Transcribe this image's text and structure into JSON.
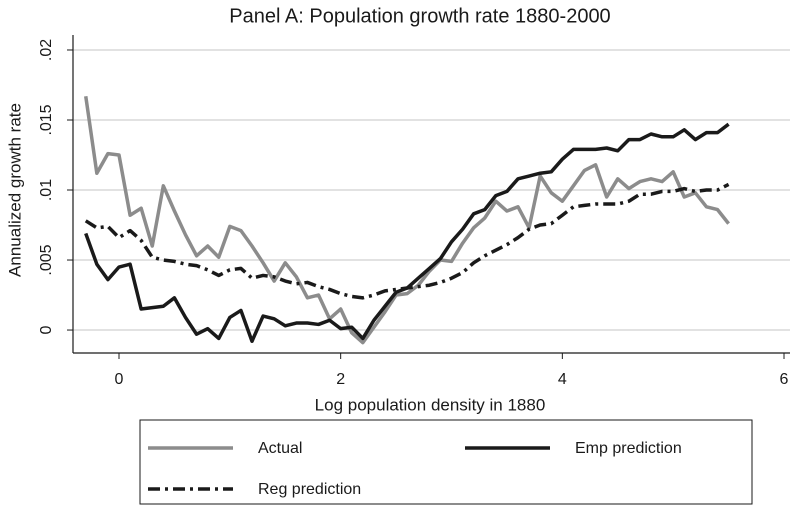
{
  "chart_data": {
    "type": "line",
    "title": "Panel A: Population growth rate 1880-2000",
    "xlabel": "Log population density in 1880",
    "ylabel": "Annualized growth rate",
    "x": [
      -0.3,
      -0.2,
      -0.1,
      0,
      0.1,
      0.2,
      0.3,
      0.4,
      0.5,
      0.6,
      0.7,
      0.8,
      0.9,
      1.0,
      1.1,
      1.2,
      1.3,
      1.4,
      1.5,
      1.6,
      1.7,
      1.8,
      1.9,
      2.0,
      2.1,
      2.2,
      2.3,
      2.4,
      2.5,
      2.6,
      2.7,
      2.8,
      2.9,
      3.0,
      3.1,
      3.2,
      3.3,
      3.4,
      3.5,
      3.6,
      3.7,
      3.8,
      3.9,
      4.0,
      4.1,
      4.2,
      4.3,
      4.4,
      4.5,
      4.6,
      4.7,
      4.8,
      4.9,
      5.0,
      5.1,
      5.2,
      5.3,
      5.4,
      5.5
    ],
    "series": [
      {
        "name": "Actual",
        "color": "#8c8c8c",
        "dash": "solid",
        "values": [
          0.0167,
          0.0112,
          0.0126,
          0.0125,
          0.0082,
          0.0087,
          0.006,
          0.0103,
          0.0085,
          0.0068,
          0.0053,
          0.006,
          0.0052,
          0.0074,
          0.0071,
          0.006,
          0.0048,
          0.0035,
          0.0048,
          0.0038,
          0.0023,
          0.0025,
          0.0008,
          0.0015,
          -0.0002,
          -0.0009,
          0.0002,
          0.0013,
          0.0025,
          0.0026,
          0.0032,
          0.0042,
          0.005,
          0.0049,
          0.0062,
          0.0073,
          0.008,
          0.0092,
          0.0085,
          0.0088,
          0.0073,
          0.011,
          0.0098,
          0.0092,
          0.0103,
          0.0114,
          0.0118,
          0.0095,
          0.0108,
          0.0101,
          0.0106,
          0.0108,
          0.0106,
          0.0113,
          0.0095,
          0.0098,
          0.0088,
          0.0086,
          0.0076
        ]
      },
      {
        "name": "Emp prediction",
        "color": "#1a1a1a",
        "dash": "solid",
        "values": [
          0.0069,
          0.0047,
          0.0036,
          0.0045,
          0.0047,
          0.0015,
          0.0016,
          0.0017,
          0.0023,
          0.0009,
          -0.0003,
          0.0001,
          -0.0006,
          0.0009,
          0.0014,
          -0.0008,
          0.001,
          0.0008,
          0.0003,
          0.0005,
          0.0005,
          0.0004,
          0.0007,
          0.0001,
          0.0002,
          -0.0006,
          0.0007,
          0.0017,
          0.0027,
          0.003,
          0.0037,
          0.0044,
          0.0051,
          0.0063,
          0.0072,
          0.0083,
          0.0086,
          0.0096,
          0.0099,
          0.0108,
          0.011,
          0.0112,
          0.0113,
          0.0122,
          0.0129,
          0.0129,
          0.0129,
          0.013,
          0.0128,
          0.0136,
          0.0136,
          0.014,
          0.0138,
          0.0138,
          0.0143,
          0.0136,
          0.0141,
          0.0141,
          0.0147
        ]
      },
      {
        "name": "Reg prediction",
        "color": "#1a1a1a",
        "dash": "dashdot",
        "values": [
          0.0078,
          0.0073,
          0.0074,
          0.0066,
          0.0071,
          0.0064,
          0.0052,
          0.005,
          0.0049,
          0.0047,
          0.0046,
          0.0043,
          0.0039,
          0.0043,
          0.0044,
          0.0037,
          0.0039,
          0.0038,
          0.0035,
          0.0033,
          0.0034,
          0.0031,
          0.0029,
          0.0026,
          0.0024,
          0.0023,
          0.0025,
          0.0028,
          0.0029,
          0.003,
          0.0031,
          0.0032,
          0.0034,
          0.0037,
          0.0041,
          0.0048,
          0.0053,
          0.0057,
          0.0061,
          0.0066,
          0.0072,
          0.0075,
          0.0076,
          0.0082,
          0.0088,
          0.0089,
          0.009,
          0.009,
          0.009,
          0.0092,
          0.0097,
          0.0097,
          0.0099,
          0.0099,
          0.0101,
          0.0099,
          0.01,
          0.01,
          0.0104
        ]
      }
    ],
    "xlim": [
      -0.415,
      6.054
    ],
    "xticks": [
      0,
      2,
      4,
      6
    ],
    "ylim": [
      -0.00164,
      0.02107
    ],
    "yticks": [
      0,
      {
        "value": 0.005,
        "label": ".005"
      },
      {
        "value": 0.01,
        "label": ".01"
      },
      {
        "value": 0.015,
        "label": ".015"
      },
      {
        "value": 0.02,
        "label": ".02"
      }
    ],
    "grid": true,
    "legend": "bottom"
  }
}
